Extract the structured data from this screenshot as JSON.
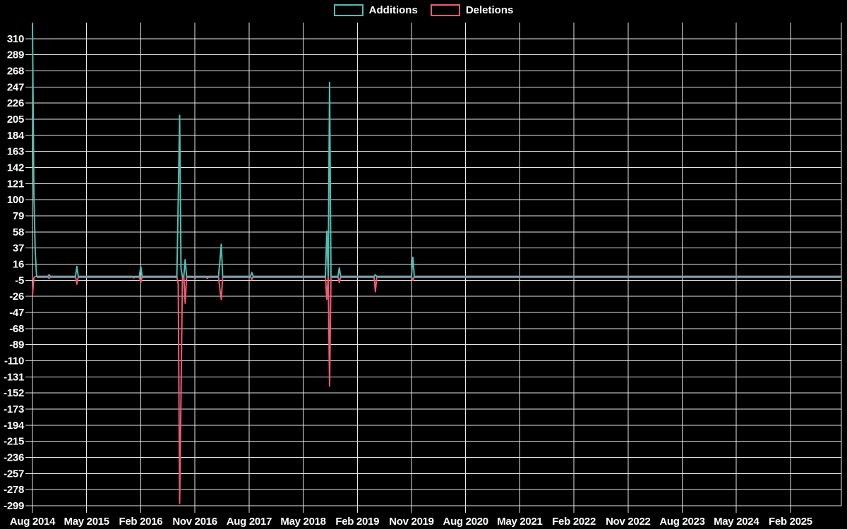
{
  "chart_data": {
    "type": "line",
    "title": "",
    "legend": [
      {
        "label": "Additions",
        "color": "#4fbfb4"
      },
      {
        "label": "Deletions",
        "color": "#ef5a78"
      }
    ],
    "colors": {
      "background": "#000000",
      "grid": "#e6e6e6",
      "text": "#ffffff",
      "additions": "#4fbfb4",
      "deletions": "#ef5a78",
      "baseline_overlap": "#7e9ba6"
    },
    "x_axis": {
      "labels": [
        "Aug 2014",
        "May 2015",
        "Feb 2016",
        "Nov 2016",
        "Aug 2017",
        "May 2018",
        "Feb 2019",
        "Nov 2019",
        "Aug 2020",
        "May 2021",
        "Feb 2022",
        "Nov 2022",
        "Aug 2023",
        "May 2024",
        "Feb 2025"
      ],
      "weeks_per_tick": 39
    },
    "y_axis": {
      "ticks": [
        310,
        289,
        268,
        247,
        226,
        205,
        184,
        163,
        142,
        121,
        100,
        79,
        58,
        37,
        16,
        -5,
        -26,
        -47,
        -68,
        -89,
        -110,
        -131,
        -152,
        -173,
        -194,
        -215,
        -236,
        -257,
        -278,
        -299
      ],
      "range": [
        -299,
        331
      ]
    },
    "series_unit": "per-week",
    "weeks_total": 582,
    "points": [
      {
        "week": 0,
        "additions": 330,
        "deletions": -25
      },
      {
        "week": 1,
        "additions": 110,
        "deletions": -2
      },
      {
        "week": 2,
        "additions": 31,
        "deletions": 0
      },
      {
        "week": 12,
        "additions": 2,
        "deletions": -3
      },
      {
        "week": 32,
        "additions": 13,
        "deletions": -10
      },
      {
        "week": 73,
        "additions": 0,
        "deletions": -2
      },
      {
        "week": 78,
        "additions": 13,
        "deletions": -8
      },
      {
        "week": 105,
        "additions": 100,
        "deletions": -10
      },
      {
        "week": 106,
        "additions": 210,
        "deletions": -296
      },
      {
        "week": 107,
        "additions": 10,
        "deletions": -155
      },
      {
        "week": 110,
        "additions": 22,
        "deletions": -35
      },
      {
        "week": 117,
        "additions": 0,
        "deletions": -3
      },
      {
        "week": 126,
        "additions": 0,
        "deletions": -3
      },
      {
        "week": 135,
        "additions": 20,
        "deletions": -17
      },
      {
        "week": 136,
        "additions": 42,
        "deletions": -30
      },
      {
        "week": 158,
        "additions": 5,
        "deletions": -4
      },
      {
        "week": 212,
        "additions": 59,
        "deletions": -30
      },
      {
        "week": 214,
        "additions": 253,
        "deletions": -143
      },
      {
        "week": 221,
        "additions": 11,
        "deletions": -8
      },
      {
        "week": 247,
        "additions": 2,
        "deletions": -20
      },
      {
        "week": 274,
        "additions": 25,
        "deletions": -5
      }
    ]
  }
}
